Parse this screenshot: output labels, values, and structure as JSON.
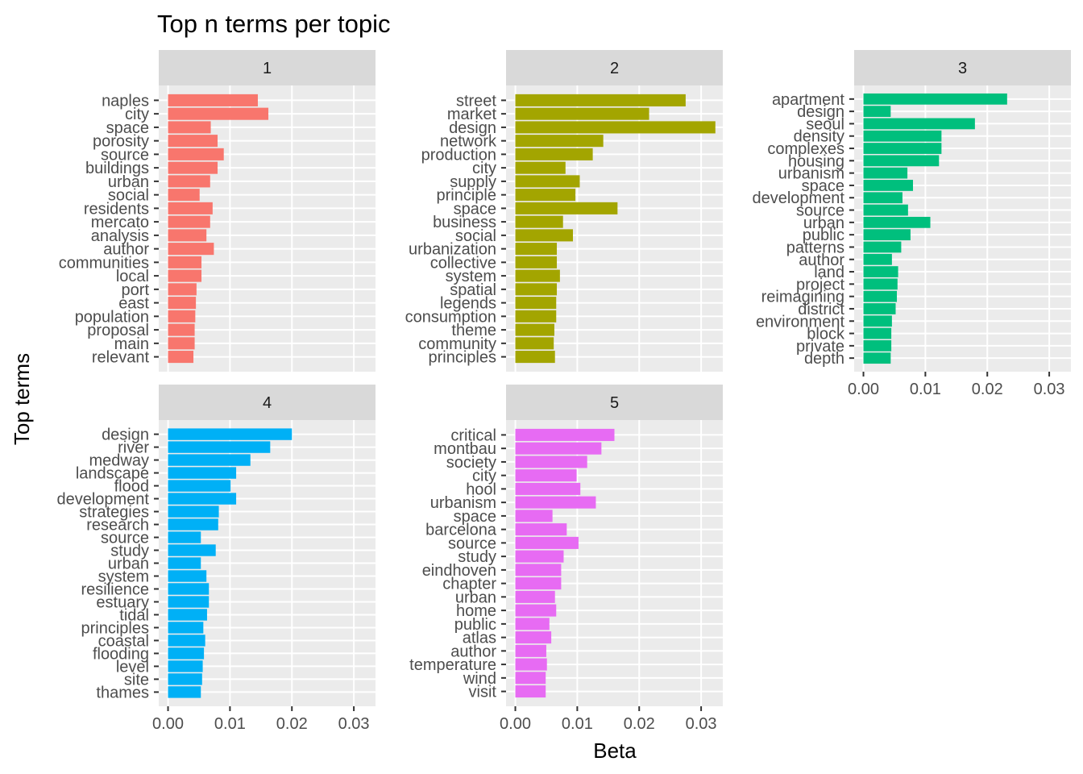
{
  "chart_data": {
    "type": "bar",
    "orientation": "horizontal",
    "title": "Top n terms per topic",
    "xlabel": "Beta",
    "ylabel": "Top terms",
    "xlim": [
      -0.0015,
      0.0335
    ],
    "x_ticks": [
      0.0,
      0.01,
      0.02,
      0.03
    ],
    "x_tick_labels": [
      "0.00",
      "0.01",
      "0.02",
      "0.03"
    ],
    "grid": true,
    "legend": "none",
    "panels": [
      {
        "label": "1",
        "color": "#F8766D",
        "categories": [
          "naples",
          "city",
          "space",
          "porosity",
          "source",
          "buildings",
          "urban",
          "social",
          "residents",
          "mercato",
          "analysis",
          "author",
          "communities",
          "local",
          "port",
          "east",
          "population",
          "proposal",
          "main",
          "relevant"
        ],
        "values": [
          0.0145,
          0.0162,
          0.0069,
          0.008,
          0.009,
          0.008,
          0.0068,
          0.0051,
          0.0072,
          0.0068,
          0.0062,
          0.0074,
          0.0054,
          0.0054,
          0.0046,
          0.0045,
          0.0044,
          0.0043,
          0.0043,
          0.0041
        ]
      },
      {
        "label": "2",
        "color": "#A3A500",
        "categories": [
          "street",
          "market",
          "design",
          "network",
          "production",
          "city",
          "supply",
          "principle",
          "space",
          "business",
          "social",
          "urbanization",
          "collective",
          "system",
          "spatial",
          "legends",
          "consumption",
          "theme",
          "community",
          "principles"
        ],
        "values": [
          0.0275,
          0.0216,
          0.0323,
          0.0142,
          0.0125,
          0.0081,
          0.0104,
          0.0097,
          0.0165,
          0.0077,
          0.0093,
          0.0067,
          0.0067,
          0.0072,
          0.0067,
          0.0066,
          0.0066,
          0.0063,
          0.0062,
          0.0064
        ]
      },
      {
        "label": "3",
        "color": "#00BF7D",
        "categories": [
          "apartment",
          "design",
          "seoul",
          "density",
          "complexes",
          "housing",
          "urbanism",
          "space",
          "development",
          "source",
          "urban",
          "public",
          "patterns",
          "author",
          "land",
          "project",
          "reimagining",
          "district",
          "environment",
          "block",
          "private",
          "depth"
        ],
        "values": [
          0.0232,
          0.0044,
          0.018,
          0.0126,
          0.0126,
          0.0122,
          0.0071,
          0.008,
          0.0063,
          0.0072,
          0.0108,
          0.0076,
          0.0061,
          0.0046,
          0.0056,
          0.0055,
          0.0054,
          0.0052,
          0.0046,
          0.0045,
          0.0045,
          0.0044
        ]
      },
      {
        "label": "4",
        "color": "#00B0F6",
        "categories": [
          "design",
          "river",
          "medway",
          "landscape",
          "flood",
          "development",
          "strategies",
          "research",
          "source",
          "study",
          "urban",
          "system",
          "resilience",
          "estuary",
          "tidal",
          "principles",
          "coastal",
          "flooding",
          "level",
          "site",
          "thames"
        ],
        "values": [
          0.02,
          0.0165,
          0.0133,
          0.011,
          0.0101,
          0.011,
          0.0082,
          0.0081,
          0.0053,
          0.0077,
          0.0053,
          0.0062,
          0.0066,
          0.0066,
          0.0063,
          0.0057,
          0.006,
          0.0058,
          0.0056,
          0.0055,
          0.0053
        ]
      },
      {
        "label": "5",
        "color": "#E76BF3",
        "categories": [
          "critical",
          "montbau",
          "society",
          "city",
          "hool",
          "urbanism",
          "space",
          "barcelona",
          "source",
          "study",
          "eindhoven",
          "chapter",
          "urban",
          "home",
          "public",
          "atlas",
          "author",
          "temperature",
          "wind",
          "visit"
        ],
        "values": [
          0.016,
          0.0139,
          0.0116,
          0.0099,
          0.0105,
          0.013,
          0.006,
          0.0083,
          0.0102,
          0.0078,
          0.0074,
          0.0074,
          0.0064,
          0.0066,
          0.0055,
          0.0058,
          0.005,
          0.0051,
          0.0049,
          0.0049
        ]
      }
    ]
  }
}
